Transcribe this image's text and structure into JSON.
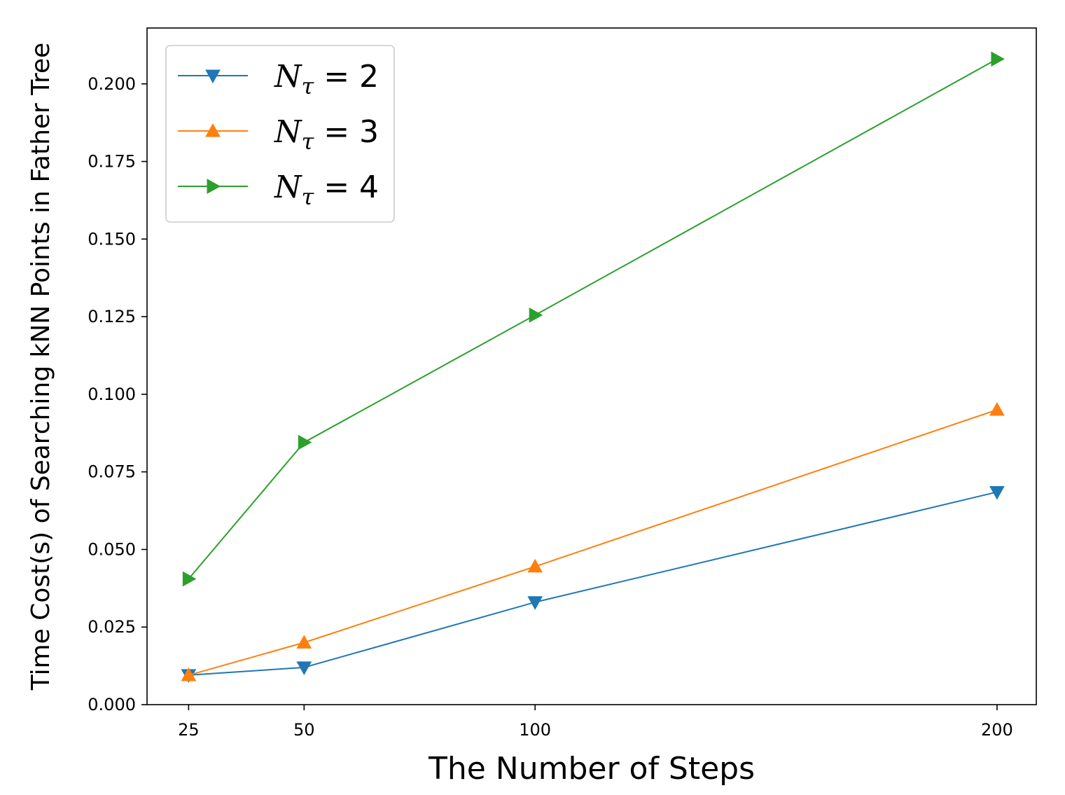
{
  "chart_data": {
    "type": "line",
    "xlabel": "The Number of Steps",
    "ylabel": "Time Cost(s) of Searching kNN Points in Father Tree",
    "x": [
      25,
      50,
      100,
      200
    ],
    "x_ticks": [
      "25",
      "50",
      "100",
      "200"
    ],
    "y_ticks": [
      "0.000",
      "0.025",
      "0.050",
      "0.075",
      "0.100",
      "0.125",
      "0.150",
      "0.175",
      "0.200"
    ],
    "y_tick_values": [
      0,
      0.025,
      0.05,
      0.075,
      0.1,
      0.125,
      0.15,
      0.175,
      0.2
    ],
    "xlim": [
      16,
      208.5
    ],
    "ylim": [
      0,
      0.218
    ],
    "grid": false,
    "legend_position": "upper-left",
    "series": [
      {
        "name": "N_τ = 2",
        "legend_symbol": "N",
        "legend_subscript": "τ",
        "legend_rest": " = 2",
        "color": "#1f77b4",
        "marker": "triangle-down",
        "values": [
          0.0095,
          0.012,
          0.033,
          0.0685
        ]
      },
      {
        "name": "N_τ = 3",
        "legend_symbol": "N",
        "legend_subscript": "τ",
        "legend_rest": " = 3",
        "color": "#ff7f0e",
        "marker": "triangle-up",
        "values": [
          0.0095,
          0.02,
          0.0445,
          0.095
        ]
      },
      {
        "name": "N_τ = 4",
        "legend_symbol": "N",
        "legend_subscript": "τ",
        "legend_rest": " = 4",
        "color": "#2ca02c",
        "marker": "triangle-right",
        "values": [
          0.0405,
          0.0845,
          0.1255,
          0.208
        ]
      }
    ]
  }
}
